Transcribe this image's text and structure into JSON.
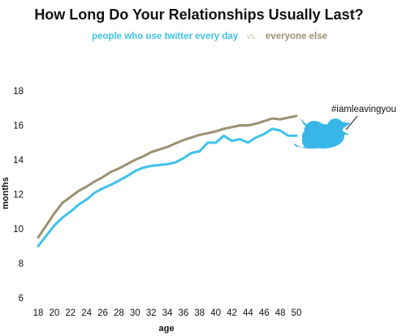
{
  "chart_data": {
    "type": "line",
    "title": "How Long Do Your Relationships Usually Last?",
    "xlabel": "age",
    "ylabel": "months",
    "xlim": [
      18,
      50
    ],
    "ylim": [
      6,
      18
    ],
    "x_ticks": [
      18,
      20,
      22,
      24,
      26,
      28,
      30,
      32,
      34,
      36,
      38,
      40,
      42,
      44,
      46,
      48,
      50
    ],
    "y_ticks": [
      6,
      8,
      10,
      12,
      14,
      16,
      18
    ],
    "grid": false,
    "legend_position": "top-center",
    "legend_separator": "vs.",
    "annotation": "#iamleavingyou",
    "annotation_icon": "twitter-bird-icon",
    "x": [
      18,
      19,
      20,
      21,
      22,
      23,
      24,
      25,
      26,
      27,
      28,
      29,
      30,
      31,
      32,
      33,
      34,
      35,
      36,
      37,
      38,
      39,
      40,
      41,
      42,
      43,
      44,
      45,
      46,
      47,
      48,
      49,
      50
    ],
    "series": [
      {
        "name": "people who use twitter every day",
        "color": "#3fc3ea",
        "values": [
          9.0,
          9.6,
          10.2,
          10.65,
          11.0,
          11.4,
          11.7,
          12.1,
          12.35,
          12.55,
          12.8,
          13.05,
          13.35,
          13.55,
          13.65,
          13.7,
          13.75,
          13.85,
          14.1,
          14.4,
          14.5,
          15.0,
          15.0,
          15.4,
          15.1,
          15.2,
          15.0,
          15.3,
          15.5,
          15.8,
          15.7,
          15.4,
          15.4
        ]
      },
      {
        "name": "everyone else",
        "color": "#9a9170",
        "values": [
          9.5,
          10.2,
          10.9,
          11.5,
          11.85,
          12.2,
          12.45,
          12.75,
          13.0,
          13.3,
          13.5,
          13.75,
          14.0,
          14.2,
          14.45,
          14.6,
          14.75,
          14.95,
          15.15,
          15.3,
          15.45,
          15.55,
          15.65,
          15.8,
          15.9,
          16.0,
          16.0,
          16.1,
          16.25,
          16.4,
          16.35,
          16.45,
          16.55
        ]
      }
    ]
  }
}
